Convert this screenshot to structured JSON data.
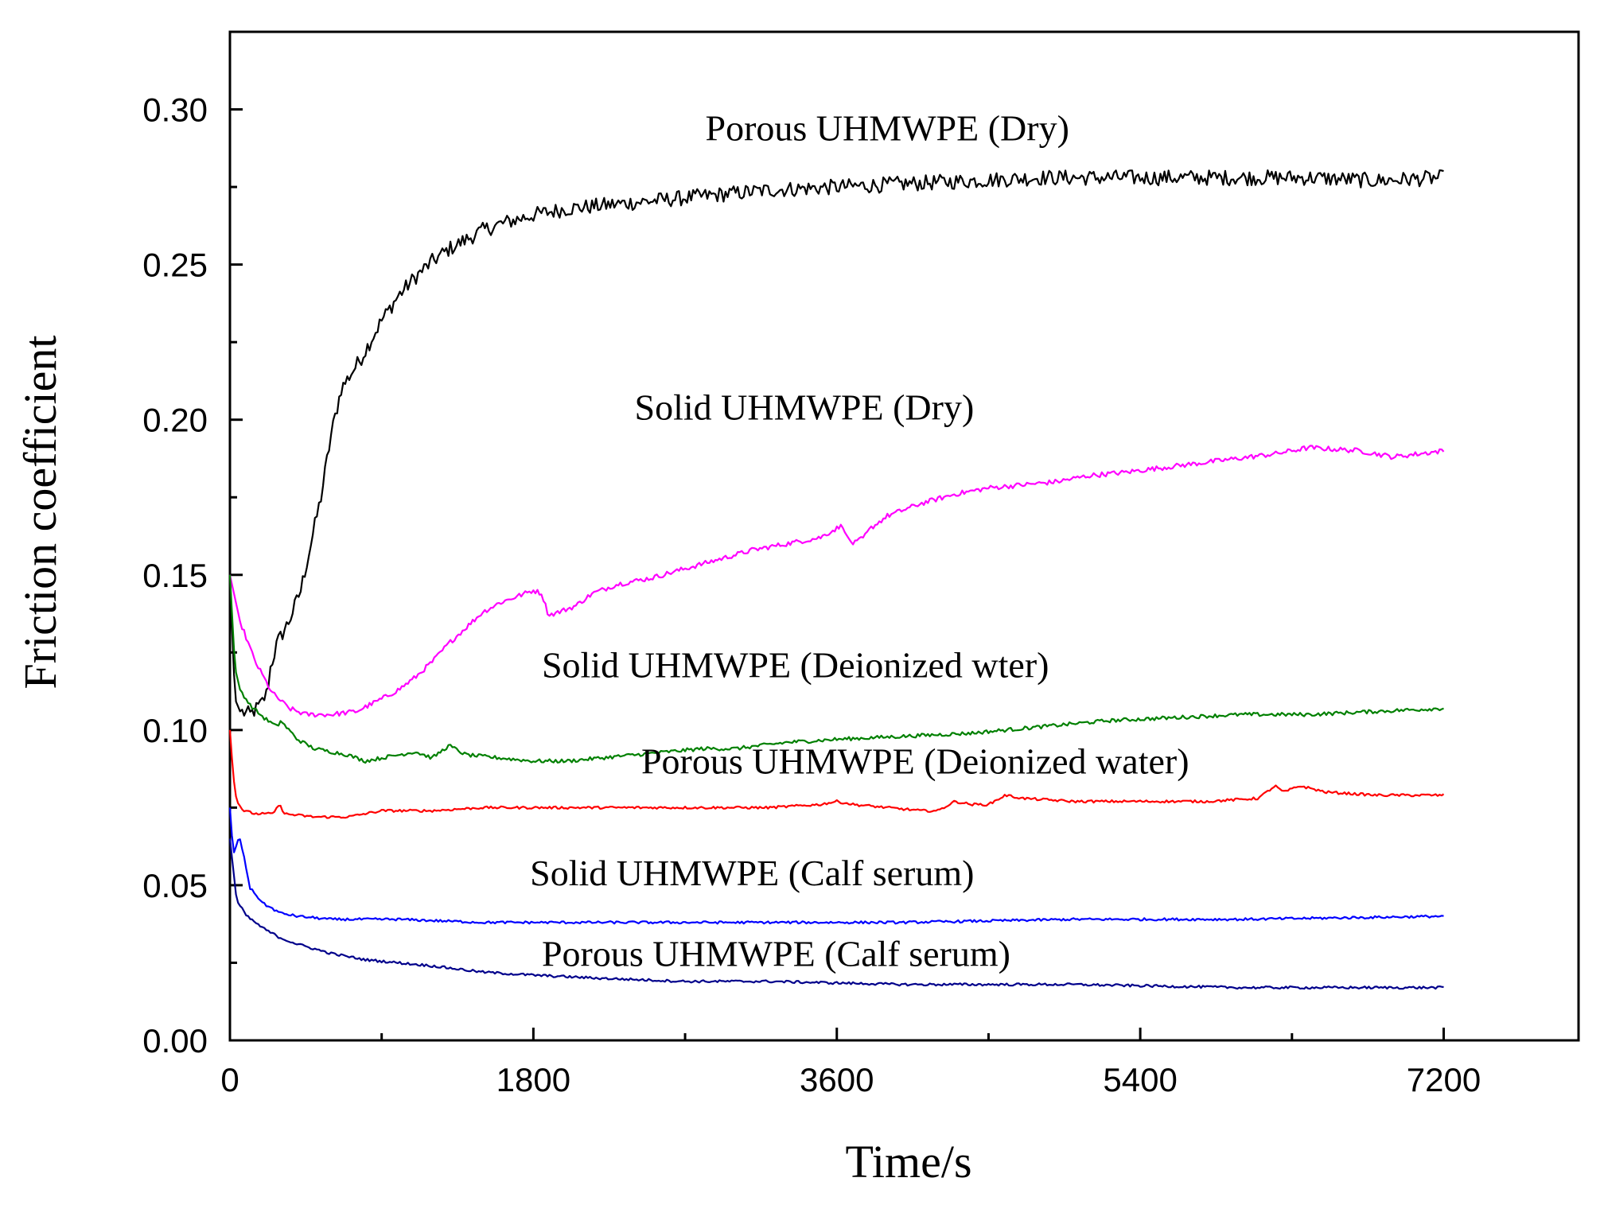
{
  "chart_data": {
    "type": "line",
    "title": "",
    "xlabel": "Time/s",
    "ylabel": "Friction coefficient",
    "xlim": [
      0,
      8000
    ],
    "ylim": [
      0,
      0.325
    ],
    "x_ticks": [
      0,
      1800,
      3600,
      5400,
      7200
    ],
    "x_tick_labels": [
      "0",
      "1800",
      "3600",
      "5400",
      "7200"
    ],
    "x_minor_ticks": [
      900,
      2700,
      4500,
      6300
    ],
    "y_ticks": [
      0.0,
      0.05,
      0.1,
      0.15,
      0.2,
      0.25,
      0.3
    ],
    "y_tick_labels": [
      "0.00",
      "0.05",
      "0.10",
      "0.15",
      "0.20",
      "0.25",
      "0.30"
    ],
    "y_minor_ticks": [
      0.025,
      0.075,
      0.125,
      0.175,
      0.225,
      0.275
    ],
    "grid": false,
    "legend": "none (series labelled inline)",
    "series": [
      {
        "name": "Porous UHMWPE (Dry)",
        "color": "#000000",
        "label_pos": [
          2820,
          0.29
        ],
        "points": [
          [
            0,
            0.15
          ],
          [
            30,
            0.11
          ],
          [
            60,
            0.106
          ],
          [
            120,
            0.105
          ],
          [
            180,
            0.108
          ],
          [
            220,
            0.112
          ],
          [
            240,
            0.12
          ],
          [
            280,
            0.128
          ],
          [
            350,
            0.135
          ],
          [
            420,
            0.145
          ],
          [
            480,
            0.16
          ],
          [
            540,
            0.175
          ],
          [
            600,
            0.195
          ],
          [
            660,
            0.21
          ],
          [
            720,
            0.215
          ],
          [
            780,
            0.22
          ],
          [
            900,
            0.232
          ],
          [
            1000,
            0.24
          ],
          [
            1100,
            0.246
          ],
          [
            1200,
            0.251
          ],
          [
            1300,
            0.255
          ],
          [
            1400,
            0.258
          ],
          [
            1500,
            0.261
          ],
          [
            1600,
            0.263
          ],
          [
            1800,
            0.266
          ],
          [
            2000,
            0.268
          ],
          [
            2200,
            0.269
          ],
          [
            2400,
            0.27
          ],
          [
            2800,
            0.272
          ],
          [
            3200,
            0.274
          ],
          [
            3600,
            0.275
          ],
          [
            4000,
            0.276
          ],
          [
            4400,
            0.277
          ],
          [
            4800,
            0.278
          ],
          [
            5200,
            0.278
          ],
          [
            5600,
            0.278
          ],
          [
            6000,
            0.278
          ],
          [
            6400,
            0.278
          ],
          [
            6800,
            0.277
          ],
          [
            7200,
            0.278
          ]
        ],
        "noise": 0.0025
      },
      {
        "name": "Solid UHMWPE (Dry)",
        "color": "#ff00ff",
        "label_pos": [
          2400,
          0.2
        ],
        "points": [
          [
            0,
            0.15
          ],
          [
            60,
            0.135
          ],
          [
            150,
            0.122
          ],
          [
            250,
            0.112
          ],
          [
            350,
            0.107
          ],
          [
            450,
            0.105
          ],
          [
            600,
            0.105
          ],
          [
            750,
            0.106
          ],
          [
            900,
            0.11
          ],
          [
            1000,
            0.113
          ],
          [
            1100,
            0.117
          ],
          [
            1200,
            0.122
          ],
          [
            1300,
            0.128
          ],
          [
            1400,
            0.133
          ],
          [
            1500,
            0.138
          ],
          [
            1600,
            0.141
          ],
          [
            1700,
            0.143
          ],
          [
            1800,
            0.145
          ],
          [
            1850,
            0.144
          ],
          [
            1890,
            0.137
          ],
          [
            1950,
            0.138
          ],
          [
            2050,
            0.14
          ],
          [
            2150,
            0.144
          ],
          [
            2300,
            0.147
          ],
          [
            2500,
            0.149
          ],
          [
            2700,
            0.152
          ],
          [
            2900,
            0.155
          ],
          [
            3100,
            0.158
          ],
          [
            3300,
            0.16
          ],
          [
            3500,
            0.162
          ],
          [
            3600,
            0.165
          ],
          [
            3640,
            0.166
          ],
          [
            3660,
            0.162
          ],
          [
            3700,
            0.16
          ],
          [
            3760,
            0.162
          ],
          [
            3800,
            0.165
          ],
          [
            3900,
            0.169
          ],
          [
            4100,
            0.173
          ],
          [
            4300,
            0.176
          ],
          [
            4500,
            0.178
          ],
          [
            4700,
            0.179
          ],
          [
            4900,
            0.18
          ],
          [
            5100,
            0.182
          ],
          [
            5300,
            0.183
          ],
          [
            5600,
            0.185
          ],
          [
            5900,
            0.187
          ],
          [
            6200,
            0.189
          ],
          [
            6400,
            0.191
          ],
          [
            6700,
            0.19
          ],
          [
            6900,
            0.188
          ],
          [
            7200,
            0.19
          ]
        ],
        "noise": 0.0008
      },
      {
        "name": "Solid UHMWPE (Deionized wter)",
        "color": "#008000",
        "label_pos": [
          1850,
          0.117
        ],
        "points": [
          [
            0,
            0.15
          ],
          [
            30,
            0.12
          ],
          [
            60,
            0.113
          ],
          [
            120,
            0.108
          ],
          [
            200,
            0.104
          ],
          [
            280,
            0.101
          ],
          [
            300,
            0.103
          ],
          [
            400,
            0.097
          ],
          [
            500,
            0.094
          ],
          [
            600,
            0.093
          ],
          [
            700,
            0.092
          ],
          [
            800,
            0.09
          ],
          [
            900,
            0.091
          ],
          [
            1000,
            0.092
          ],
          [
            1100,
            0.093
          ],
          [
            1200,
            0.091
          ],
          [
            1300,
            0.095
          ],
          [
            1400,
            0.092
          ],
          [
            1600,
            0.091
          ],
          [
            1800,
            0.09
          ],
          [
            2000,
            0.09
          ],
          [
            2200,
            0.091
          ],
          [
            2400,
            0.092
          ],
          [
            2600,
            0.093
          ],
          [
            2800,
            0.094
          ],
          [
            3000,
            0.094
          ],
          [
            3300,
            0.096
          ],
          [
            3600,
            0.097
          ],
          [
            4000,
            0.098
          ],
          [
            4400,
            0.099
          ],
          [
            4800,
            0.101
          ],
          [
            5200,
            0.103
          ],
          [
            5600,
            0.104
          ],
          [
            6000,
            0.105
          ],
          [
            6400,
            0.105
          ],
          [
            6800,
            0.106
          ],
          [
            7200,
            0.107
          ]
        ],
        "noise": 0.0006
      },
      {
        "name": "Porous UHMWPE (Deionized water)",
        "color": "#ff0000",
        "label_pos": [
          2440,
          0.086
        ],
        "points": [
          [
            0,
            0.1
          ],
          [
            20,
            0.085
          ],
          [
            40,
            0.077
          ],
          [
            80,
            0.074
          ],
          [
            150,
            0.073
          ],
          [
            250,
            0.073
          ],
          [
            300,
            0.076
          ],
          [
            320,
            0.073
          ],
          [
            500,
            0.072
          ],
          [
            700,
            0.072
          ],
          [
            900,
            0.074
          ],
          [
            1200,
            0.074
          ],
          [
            1500,
            0.075
          ],
          [
            1800,
            0.075
          ],
          [
            2100,
            0.075
          ],
          [
            2400,
            0.075
          ],
          [
            2800,
            0.075
          ],
          [
            3200,
            0.075
          ],
          [
            3500,
            0.076
          ],
          [
            3600,
            0.077
          ],
          [
            3700,
            0.076
          ],
          [
            4100,
            0.074
          ],
          [
            4200,
            0.074
          ],
          [
            4300,
            0.077
          ],
          [
            4400,
            0.076
          ],
          [
            4500,
            0.076
          ],
          [
            4600,
            0.079
          ],
          [
            4700,
            0.078
          ],
          [
            5000,
            0.077
          ],
          [
            5400,
            0.077
          ],
          [
            5800,
            0.077
          ],
          [
            6100,
            0.078
          ],
          [
            6200,
            0.082
          ],
          [
            6250,
            0.08
          ],
          [
            6350,
            0.082
          ],
          [
            6500,
            0.08
          ],
          [
            6800,
            0.079
          ],
          [
            7200,
            0.079
          ]
        ],
        "noise": 0.0004
      },
      {
        "name": "Solid UHMWPE (Calf serum)",
        "color": "#0000ff",
        "label_pos": [
          1780,
          0.05
        ],
        "points": [
          [
            0,
            0.075
          ],
          [
            20,
            0.06
          ],
          [
            40,
            0.063
          ],
          [
            55,
            0.066
          ],
          [
            80,
            0.06
          ],
          [
            120,
            0.049
          ],
          [
            200,
            0.044
          ],
          [
            300,
            0.041
          ],
          [
            400,
            0.04
          ],
          [
            600,
            0.039
          ],
          [
            1000,
            0.039
          ],
          [
            1500,
            0.038
          ],
          [
            2000,
            0.038
          ],
          [
            3000,
            0.038
          ],
          [
            4000,
            0.038
          ],
          [
            5000,
            0.039
          ],
          [
            6000,
            0.039
          ],
          [
            7200,
            0.04
          ]
        ],
        "noise": 0.0004
      },
      {
        "name": "Porous UHMWPE (Calf serum)",
        "color": "#00008b",
        "label_pos": [
          1850,
          0.024
        ],
        "points": [
          [
            0,
            0.065
          ],
          [
            40,
            0.045
          ],
          [
            100,
            0.04
          ],
          [
            200,
            0.036
          ],
          [
            300,
            0.033
          ],
          [
            400,
            0.031
          ],
          [
            600,
            0.028
          ],
          [
            800,
            0.026
          ],
          [
            1000,
            0.025
          ],
          [
            1200,
            0.024
          ],
          [
            1500,
            0.022
          ],
          [
            1800,
            0.021
          ],
          [
            2200,
            0.02
          ],
          [
            2700,
            0.019
          ],
          [
            3200,
            0.019
          ],
          [
            4000,
            0.018
          ],
          [
            5000,
            0.018
          ],
          [
            6000,
            0.017
          ],
          [
            7200,
            0.017
          ]
        ],
        "noise": 0.0004
      }
    ]
  }
}
